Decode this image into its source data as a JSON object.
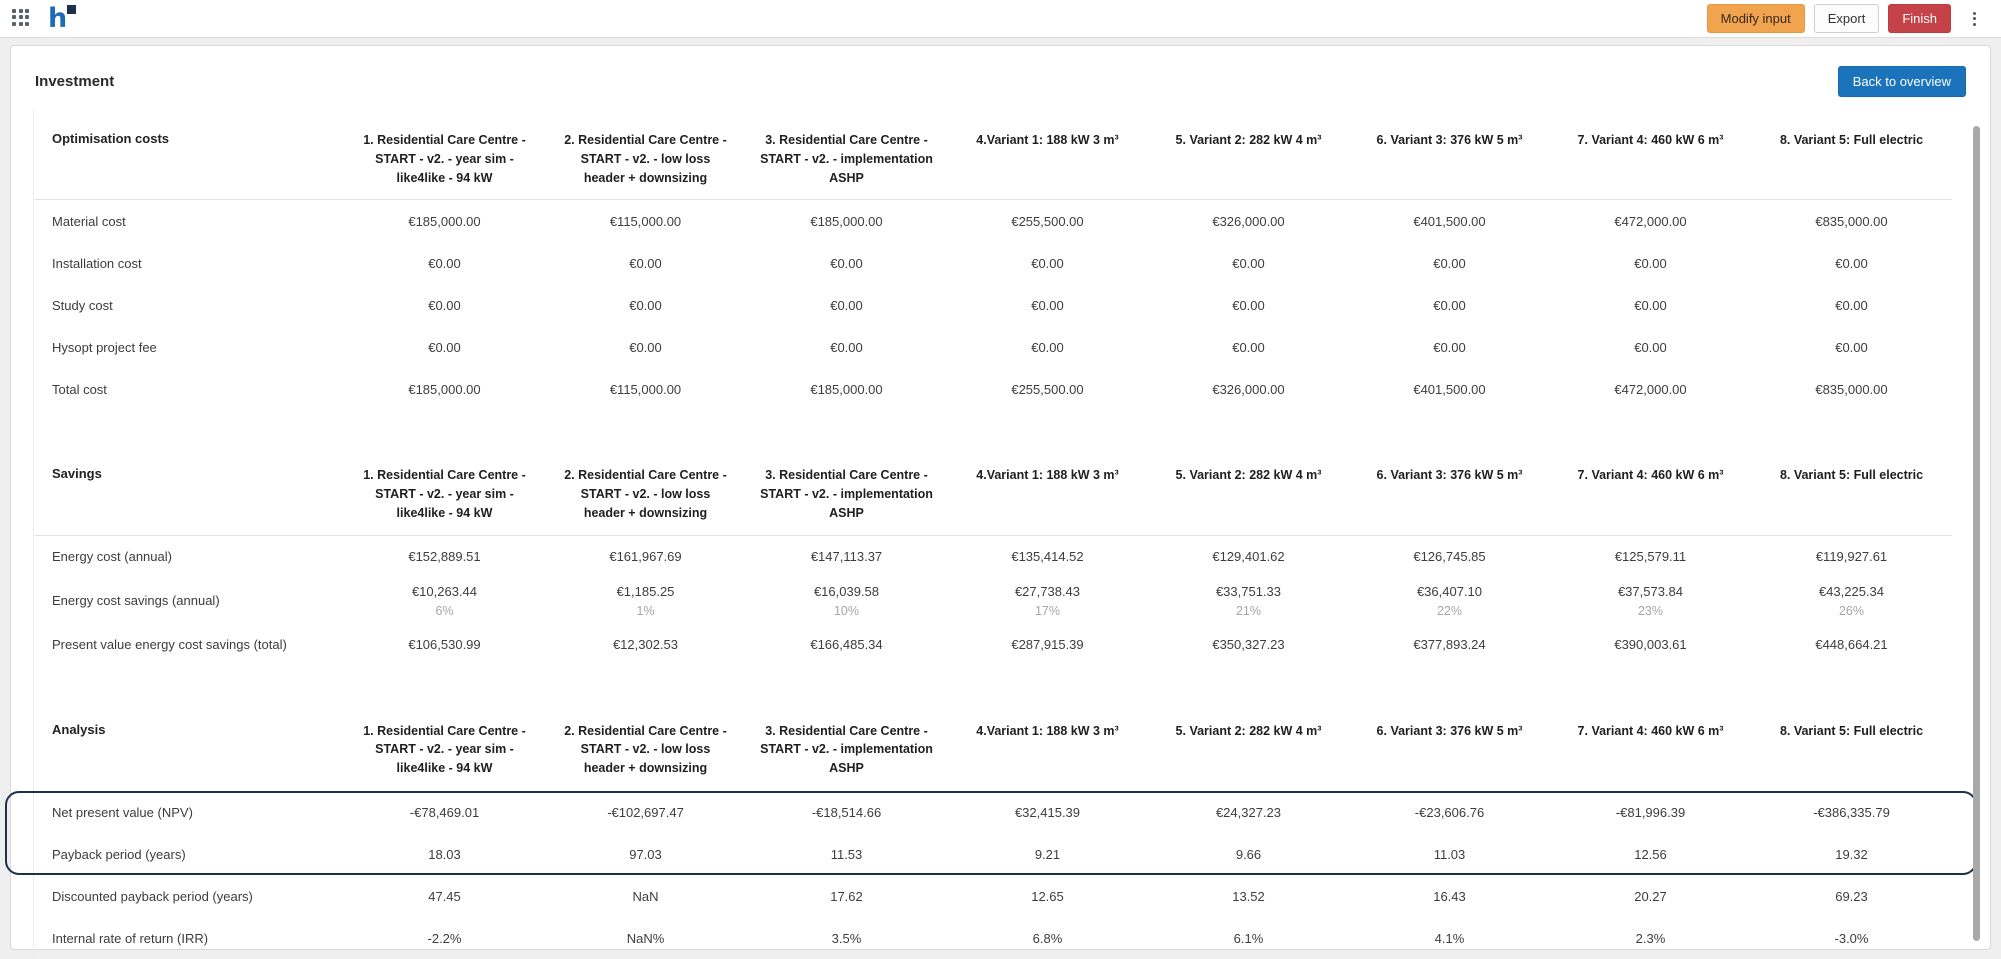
{
  "topbar": {
    "modify_input_label": "Modify input",
    "export_label": "Export",
    "finish_label": "Finish"
  },
  "page": {
    "title": "Investment",
    "back_button_label": "Back to overview"
  },
  "columns": [
    "1. Residential Care Centre - START - v2. - year sim - like4like - 94 kW",
    "2. Residential Care Centre - START - v2. - low loss header + downsizing",
    "3. Residential Care Centre - START - v2. - implementation ASHP",
    "4.Variant 1: 188 kW 3 m³",
    "5. Variant 2: 282 kW 4 m³",
    "6. Variant 3: 376 kW 5 m³",
    "7. Variant 4: 460 kW 6 m³",
    "8. Variant 5: Full electric"
  ],
  "sections": [
    {
      "title": "Optimisation costs",
      "rows": [
        {
          "label": "Material cost",
          "values": [
            "€185,000.00",
            "€115,000.00",
            "€185,000.00",
            "€255,500.00",
            "€326,000.00",
            "€401,500.00",
            "€472,000.00",
            "€835,000.00"
          ]
        },
        {
          "label": "Installation cost",
          "values": [
            "€0.00",
            "€0.00",
            "€0.00",
            "€0.00",
            "€0.00",
            "€0.00",
            "€0.00",
            "€0.00"
          ]
        },
        {
          "label": "Study cost",
          "values": [
            "€0.00",
            "€0.00",
            "€0.00",
            "€0.00",
            "€0.00",
            "€0.00",
            "€0.00",
            "€0.00"
          ]
        },
        {
          "label": "Hysopt project fee",
          "values": [
            "€0.00",
            "€0.00",
            "€0.00",
            "€0.00",
            "€0.00",
            "€0.00",
            "€0.00",
            "€0.00"
          ]
        },
        {
          "label": "Total cost",
          "values": [
            "€185,000.00",
            "€115,000.00",
            "€185,000.00",
            "€255,500.00",
            "€326,000.00",
            "€401,500.00",
            "€472,000.00",
            "€835,000.00"
          ]
        }
      ]
    },
    {
      "title": "Savings",
      "rows": [
        {
          "label": "Energy cost (annual)",
          "values": [
            "€152,889.51",
            "€161,967.69",
            "€147,113.37",
            "€135,414.52",
            "€129,401.62",
            "€126,745.85",
            "€125,579.11",
            "€119,927.61"
          ]
        },
        {
          "label": "Energy cost savings (annual)",
          "values": [
            "€10,263.44",
            "€1,185.25",
            "€16,039.58",
            "€27,738.43",
            "€33,751.33",
            "€36,407.10",
            "€37,573.84",
            "€43,225.34"
          ],
          "subs": [
            "6%",
            "1%",
            "10%",
            "17%",
            "21%",
            "22%",
            "23%",
            "26%"
          ]
        },
        {
          "label": "Present value energy cost savings (total)",
          "values": [
            "€106,530.99",
            "€12,302.53",
            "€166,485.34",
            "€287,915.39",
            "€350,327.23",
            "€377,893.24",
            "€390,003.61",
            "€448,664.21"
          ]
        }
      ]
    },
    {
      "title": "Analysis",
      "no_separator": true,
      "rows": [
        {
          "label": "Net present value (NPV)",
          "highlighted": true,
          "values": [
            "-€78,469.01",
            "-€102,697.47",
            "-€18,514.66",
            "€32,415.39",
            "€24,327.23",
            "-€23,606.76",
            "-€81,996.39",
            "-€386,335.79"
          ]
        },
        {
          "label": "Payback period (years)",
          "highlighted": true,
          "values": [
            "18.03",
            "97.03",
            "11.53",
            "9.21",
            "9.66",
            "11.03",
            "12.56",
            "19.32"
          ]
        },
        {
          "label": "Discounted payback period (years)",
          "values": [
            "47.45",
            "NaN",
            "17.62",
            "12.65",
            "13.52",
            "16.43",
            "20.27",
            "69.23"
          ]
        },
        {
          "label": "Internal rate of return (IRR)",
          "values": [
            "-2.2%",
            "NaN%",
            "3.5%",
            "6.8%",
            "6.1%",
            "4.1%",
            "2.3%",
            "-3.0%"
          ]
        }
      ]
    }
  ],
  "colors": {
    "accent_blue": "#1b74bb",
    "button_orange": "#f1a44f",
    "button_red": "#c64249",
    "highlight_outline": "#1e3050",
    "logo_blue": "#1b6cb5",
    "logo_navy": "#1e3050"
  }
}
